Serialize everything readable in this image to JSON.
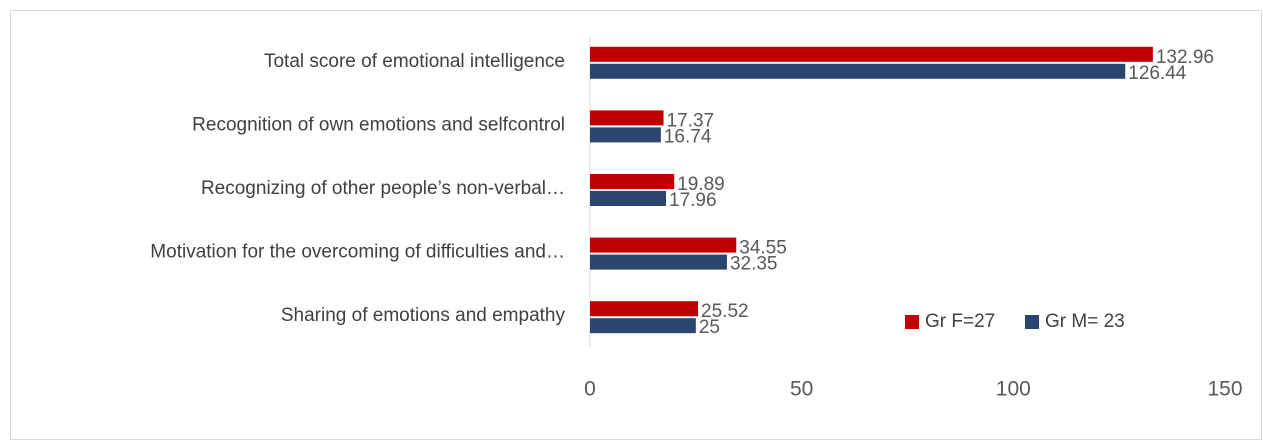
{
  "chart_data": {
    "type": "bar",
    "orientation": "horizontal",
    "categories": [
      "Total score of emotional intelligence",
      "Recognition of own emotions and selfcontrol",
      "Recognizing of other people’s non-verbal…",
      "Motivation for the overcoming of difficulties and…",
      "Sharing of emotions and empathy"
    ],
    "series": [
      {
        "name": "Gr F=27",
        "color": "#c00000",
        "values": [
          132.96,
          17.37,
          19.89,
          34.55,
          25.52
        ]
      },
      {
        "name": "Gr M= 23",
        "color": "#2a4670",
        "values": [
          126.44,
          16.74,
          17.96,
          32.35,
          25
        ]
      }
    ],
    "xlim": [
      0,
      150
    ],
    "xticks": [
      0,
      50,
      100,
      150
    ],
    "grid": false,
    "legend": "lower right"
  }
}
